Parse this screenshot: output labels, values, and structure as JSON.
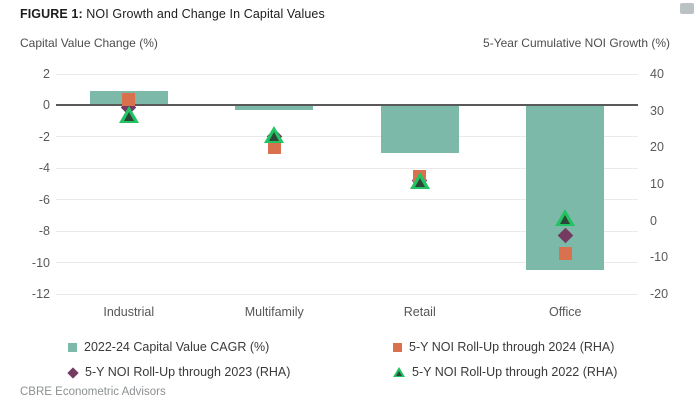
{
  "page": {
    "title_prefix": "FIGURE 1:",
    "title_rest": " NOI Growth and Change In Capital Values",
    "footer": "CBRE Econometric Advisors"
  },
  "chart_data": {
    "type": "bar",
    "title": "FIGURE 1: NOI Growth and Change In Capital Values",
    "grid": true,
    "legend_position": "bottom",
    "categories": [
      "Industrial",
      "Multifamily",
      "Retail",
      "Office"
    ],
    "left_axis": {
      "label": "Capital Value Change (%)",
      "min": -12,
      "max": 2,
      "ticks": [
        2,
        0,
        -2,
        -4,
        -6,
        -8,
        -10,
        -12
      ]
    },
    "right_axis": {
      "label": "5-Year Cumulative NOI Growth (%)",
      "min": -20,
      "max": 40,
      "ticks": [
        40,
        30,
        20,
        10,
        0,
        -10,
        -20
      ]
    },
    "bar_series": {
      "name": "2022-24 Capital Value CAGR (%)",
      "axis": "left",
      "color": "#7CB9A8",
      "values": [
        0.9,
        -0.3,
        -3.0,
        -10.5
      ]
    },
    "marker_series": [
      {
        "name": "5-Y NOI Roll-Up through 2024 (RHA)",
        "axis": "right",
        "shape": "square",
        "color": "#D9714E",
        "values": [
          33,
          20,
          12,
          -9
        ]
      },
      {
        "name": "5-Y NOI Roll-Up through 2023 (RHA)",
        "axis": "right",
        "shape": "diamond",
        "color": "#753A60",
        "values": [
          31,
          23,
          11,
          -4
        ]
      },
      {
        "name": "5-Y NOI Roll-Up through 2022 (RHA)",
        "axis": "right",
        "shape": "triangle",
        "color": "#22C362",
        "triangle_inner_color": "#2E4637",
        "values": [
          29,
          23.5,
          11,
          1
        ]
      }
    ],
    "legend": [
      {
        "shape": "square",
        "color": "#7CB9A8",
        "label": "2022-24 Capital Value CAGR (%)"
      },
      {
        "shape": "square",
        "color": "#D9714E",
        "label": "5-Y NOI Roll-Up through 2024 (RHA)"
      },
      {
        "shape": "diamond",
        "color": "#753A60",
        "label": "5-Y NOI Roll-Up through 2023 (RHA)"
      },
      {
        "shape": "triangle",
        "color": "#22C362",
        "label": "5-Y NOI Roll-Up through 2022 (RHA)"
      }
    ]
  }
}
